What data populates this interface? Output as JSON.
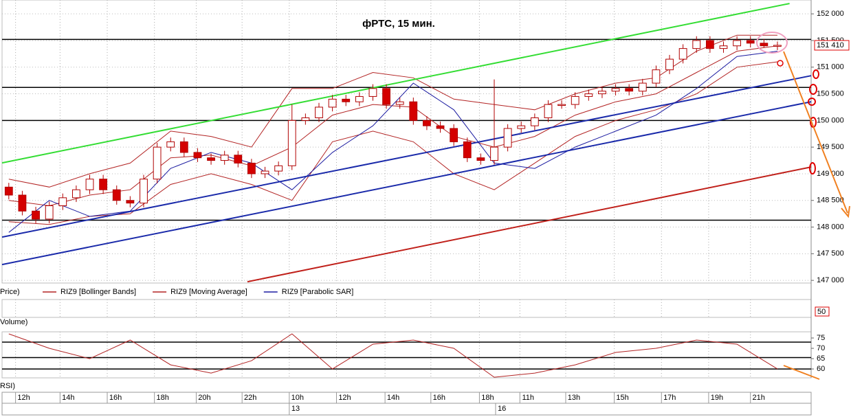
{
  "chart_data": [
    {
      "type": "candlestick",
      "title": "фРТС,  15 мин.",
      "legend_label": "Price)",
      "x": [
        0,
        1,
        2,
        3,
        4,
        5,
        6,
        7,
        8,
        9,
        10,
        11,
        12,
        13,
        14,
        15,
        16,
        17,
        18,
        19,
        20,
        21,
        22,
        23,
        24,
        25,
        26,
        27,
        28,
        29,
        30,
        31,
        32,
        33,
        34,
        35,
        36,
        37,
        38,
        39,
        40,
        41,
        42,
        43,
        44,
        45,
        46,
        47,
        48,
        49,
        50,
        51,
        52,
        53,
        54,
        55,
        56,
        57
      ],
      "open": [
        148750,
        148600,
        148300,
        148150,
        148400,
        148550,
        148700,
        148900,
        148700,
        148500,
        148450,
        148900,
        149500,
        149600,
        149400,
        149300,
        149250,
        149350,
        149200,
        149000,
        149050,
        149150,
        150000,
        150050,
        150250,
        150400,
        150350,
        150450,
        150600,
        150300,
        150350,
        150000,
        149900,
        149850,
        149600,
        149300,
        149250,
        149500,
        149850,
        149900,
        150050,
        150300,
        150300,
        150450,
        150500,
        150550,
        150600,
        150550,
        150700,
        150950,
        151150,
        151350,
        151500,
        151350,
        151400,
        151500,
        151450,
        151400
      ],
      "high": [
        148830,
        148680,
        148380,
        148480,
        148630,
        148780,
        148980,
        148980,
        148780,
        148580,
        148980,
        149580,
        149680,
        149680,
        149480,
        149380,
        149430,
        149430,
        149280,
        149130,
        149230,
        150300,
        150130,
        150330,
        150480,
        150480,
        150530,
        150680,
        150680,
        150430,
        150430,
        150080,
        149980,
        149930,
        149680,
        149380,
        150770,
        149930,
        149980,
        150130,
        150380,
        150380,
        150530,
        150580,
        150630,
        150680,
        150680,
        150780,
        151030,
        151230,
        151430,
        151580,
        151580,
        151480,
        151580,
        151580,
        151530,
        151480
      ],
      "low": [
        148520,
        148220,
        148070,
        148070,
        148320,
        148470,
        148620,
        148620,
        148420,
        148370,
        148370,
        148820,
        149420,
        149320,
        149220,
        149170,
        149170,
        149120,
        148920,
        148920,
        148970,
        149070,
        149920,
        149970,
        150170,
        150270,
        150270,
        150370,
        150220,
        150220,
        149920,
        149820,
        149770,
        149520,
        149220,
        149170,
        149170,
        149420,
        149770,
        149820,
        149970,
        150220,
        150220,
        150370,
        150420,
        150470,
        150470,
        150470,
        150620,
        150870,
        151070,
        151270,
        151270,
        151270,
        151320,
        151370,
        151370,
        151320
      ],
      "close": [
        148600,
        148300,
        148150,
        148400,
        148550,
        148700,
        148900,
        148700,
        148500,
        148450,
        148900,
        149500,
        149600,
        149400,
        149300,
        149250,
        149350,
        149200,
        149000,
        149050,
        149150,
        150000,
        150050,
        150250,
        150400,
        150350,
        150450,
        150600,
        150300,
        150350,
        150000,
        149900,
        149850,
        149600,
        149300,
        149250,
        149500,
        149850,
        149900,
        150050,
        150300,
        150300,
        150450,
        150500,
        150550,
        150600,
        150550,
        150700,
        150950,
        151150,
        151350,
        151500,
        151350,
        151400,
        151500,
        151450,
        151400,
        151410
      ],
      "up_color": "#ffffff",
      "down_color": "#d40000",
      "candle_edge": "#b00000",
      "series": [
        {
          "name": "RIZ9 [Bollinger Bands]",
          "color": "#b22222",
          "x": [
            0,
            3,
            6,
            9,
            12,
            15,
            18,
            21,
            24,
            27,
            30,
            33,
            36,
            39,
            42,
            45,
            48,
            51,
            54,
            57
          ],
          "upper": [
            148900,
            148750,
            149000,
            149200,
            149800,
            149700,
            149500,
            150600,
            150600,
            150900,
            150800,
            150400,
            150300,
            150200,
            150500,
            150700,
            150800,
            151300,
            151600,
            151600
          ],
          "lower": [
            148100,
            148050,
            148200,
            148250,
            148800,
            149000,
            148800,
            148500,
            149600,
            149800,
            149600,
            149000,
            148700,
            149200,
            149700,
            150000,
            150200,
            150500,
            151000,
            151100
          ]
        },
        {
          "name": "RIZ9 [Moving Average]",
          "color": "#b22222",
          "x": [
            0,
            3,
            6,
            9,
            12,
            15,
            18,
            21,
            24,
            27,
            30,
            33,
            36,
            39,
            42,
            45,
            48,
            51,
            54,
            57
          ],
          "values": [
            148500,
            148400,
            148600,
            148700,
            149300,
            149350,
            149150,
            149500,
            150100,
            150300,
            150250,
            149700,
            149500,
            149700,
            150100,
            150350,
            150500,
            150900,
            151300,
            151400
          ]
        },
        {
          "name": "RIZ9 [Parabolic SAR]",
          "color": "#1a1aa0",
          "x": [
            0,
            3,
            6,
            9,
            12,
            15,
            18,
            21,
            24,
            27,
            30,
            33,
            36,
            39,
            42,
            45,
            48,
            51,
            54,
            57
          ],
          "values": [
            147900,
            148500,
            148200,
            148300,
            149100,
            149400,
            149200,
            148700,
            149400,
            149900,
            150700,
            150200,
            149200,
            149100,
            149500,
            149800,
            150100,
            150600,
            151200,
            151300
          ]
        }
      ],
      "trendlines": [
        {
          "color": "#33dd33",
          "x": [
            -0.5,
            57.9
          ],
          "values": [
            149204,
            152194
          ]
        },
        {
          "color": "#1a2aaa",
          "x": [
            -0.5,
            59.5
          ],
          "values": [
            147812,
            150840
          ]
        },
        {
          "color": "#1a2aaa",
          "x": [
            -0.5,
            59.5
          ],
          "values": [
            147297,
            150351
          ]
        },
        {
          "color": "#c0201a",
          "x": [
            17.7,
            59.5
          ],
          "values": [
            146975,
            149127
          ]
        }
      ],
      "levels": [
        151520,
        150620,
        150000,
        148130
      ],
      "price_tag": {
        "value": 151410,
        "label": "151 410"
      },
      "xlim": [
        -0.5,
        59.5
      ],
      "ylim": [
        146950,
        152260
      ],
      "yticks": [
        {
          "value": 152000,
          "label": "152 000"
        },
        {
          "value": 151500,
          "label": "151 500"
        },
        {
          "value": 151000,
          "label": "151 000"
        },
        {
          "value": 150500,
          "label": "150 500"
        },
        {
          "value": 150000,
          "label": "150 000"
        },
        {
          "value": 149500,
          "label": "149 500"
        },
        {
          "value": 149000,
          "label": "149 000"
        },
        {
          "value": 148500,
          "label": "148 500"
        },
        {
          "value": 148000,
          "label": "148 000"
        },
        {
          "value": 147500,
          "label": "147 500"
        },
        {
          "value": 147000,
          "label": "147 000"
        }
      ],
      "xticks": [
        {
          "value": 0.5,
          "label": "12h"
        },
        {
          "value": 3.8,
          "label": "14h"
        },
        {
          "value": 7.3,
          "label": "16h"
        },
        {
          "value": 10.8,
          "label": "18h"
        },
        {
          "value": 13.9,
          "label": "20h"
        },
        {
          "value": 17.3,
          "label": "22h"
        },
        {
          "value": 20.8,
          "label": "10h"
        },
        {
          "value": 24.3,
          "label": "12h"
        },
        {
          "value": 27.9,
          "label": "14h"
        },
        {
          "value": 31.3,
          "label": "16h"
        },
        {
          "value": 34.9,
          "label": "18h"
        },
        {
          "value": 37.9,
          "label": "11h"
        },
        {
          "value": 41.3,
          "label": "13h"
        },
        {
          "value": 44.9,
          "label": "15h"
        },
        {
          "value": 48.4,
          "label": "17h"
        },
        {
          "value": 51.9,
          "label": "19h"
        },
        {
          "value": 55.0,
          "label": "21h"
        }
      ],
      "date_ticks": [
        {
          "value": 20.8,
          "label": "13"
        },
        {
          "value": 36.1,
          "label": "16"
        }
      ],
      "volume_label": "Volume)",
      "volume_scale_label": "50",
      "grid": true
    },
    {
      "type": "line",
      "name": "RSI)",
      "color": "#b22222",
      "x": [
        0,
        3,
        6,
        9,
        12,
        15,
        18,
        21,
        24,
        27,
        30,
        33,
        36,
        39,
        42,
        45,
        48,
        51,
        54,
        57
      ],
      "values": [
        77,
        70,
        65,
        74,
        62,
        58,
        64,
        77,
        60,
        72,
        74,
        70,
        56,
        58,
        62,
        68,
        70,
        74,
        72,
        60
      ],
      "ylim": [
        55.7,
        78
      ],
      "yticks": [
        75,
        70,
        65,
        60
      ],
      "levels": [
        73,
        65.5,
        60
      ]
    }
  ]
}
